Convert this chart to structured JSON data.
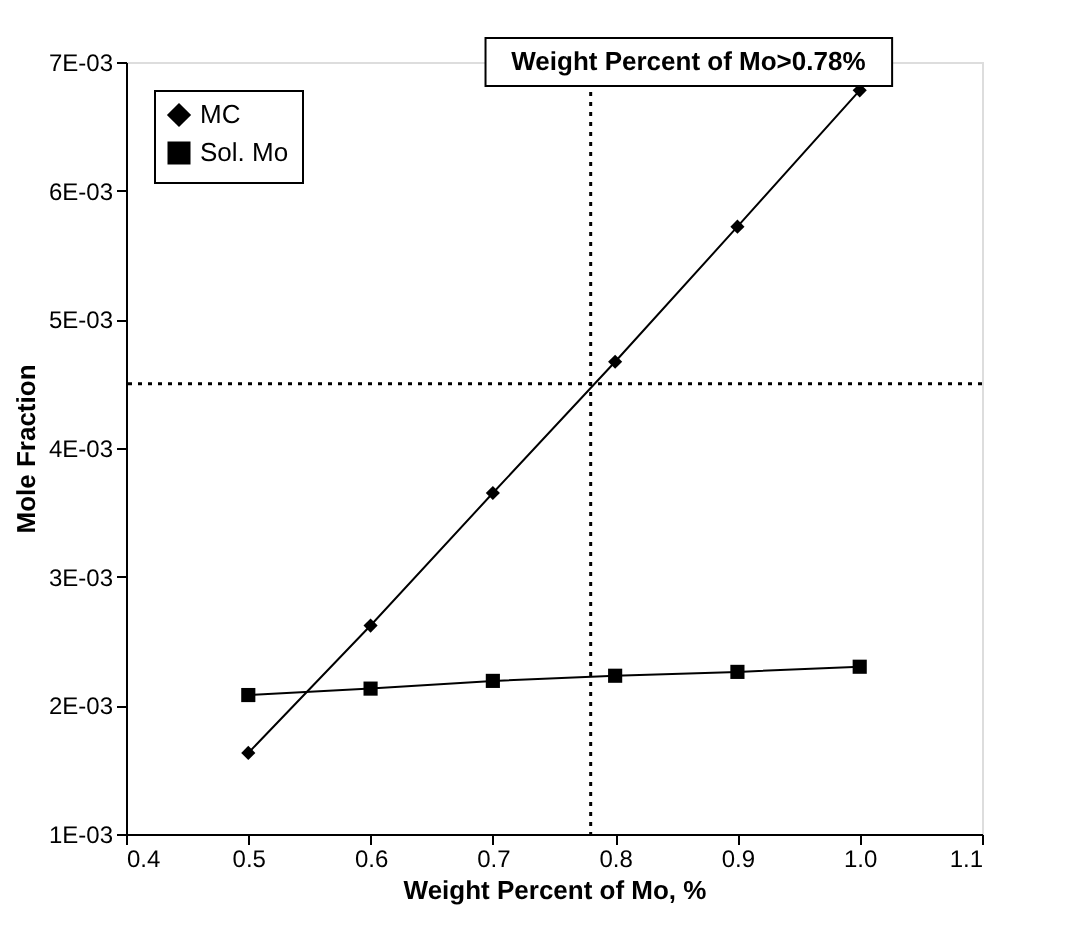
{
  "chart_data": {
    "type": "line",
    "xlabel": "Weight Percent of Mo, %",
    "ylabel": "Mole Fraction",
    "x": [
      0.5,
      0.6,
      0.7,
      0.8,
      0.9,
      1.0
    ],
    "series": [
      {
        "name": "MC",
        "color": "#000000",
        "marker": "diamond",
        "values": [
          0.00163,
          0.00262,
          0.00365,
          0.00467,
          0.00572,
          0.00678
        ]
      },
      {
        "name": "Sol. Mo",
        "color": "#000000",
        "marker": "square",
        "values": [
          0.00208,
          0.00213,
          0.00219,
          0.00223,
          0.00226,
          0.0023
        ]
      }
    ],
    "xlim": [
      0.4,
      1.1
    ],
    "xticks": [
      {
        "value": 0.4,
        "label": "0.4"
      },
      {
        "value": 0.5,
        "label": "0.5"
      },
      {
        "value": 0.6,
        "label": "0.6"
      },
      {
        "value": 0.7,
        "label": "0.7"
      },
      {
        "value": 0.8,
        "label": "0.8"
      },
      {
        "value": 0.9,
        "label": "0.9"
      },
      {
        "value": 1.0,
        "label": "1.0"
      },
      {
        "value": 1.1,
        "label": "1.1"
      }
    ],
    "ylim": [
      0.001,
      0.007
    ],
    "yticks": [
      {
        "value": 0.001,
        "label": "1E-03"
      },
      {
        "value": 0.002,
        "label": "2E-03"
      },
      {
        "value": 0.003,
        "label": "3E-03"
      },
      {
        "value": 0.004,
        "label": "4E-03"
      },
      {
        "value": 0.005,
        "label": "5E-03"
      },
      {
        "value": 0.006,
        "label": "6E-03"
      },
      {
        "value": 0.007,
        "label": "7E-03"
      }
    ],
    "ref_lines": [
      {
        "axis": "x",
        "value": 0.78,
        "line_style": "dotted",
        "color": "#000000"
      },
      {
        "axis": "y",
        "value": 0.0045,
        "line_style": "dotted",
        "color": "#000000"
      }
    ],
    "annotations": [
      "Weight Percent of Mo>0.78%"
    ],
    "legend": "top left",
    "grid": false,
    "line_style": "solid"
  }
}
